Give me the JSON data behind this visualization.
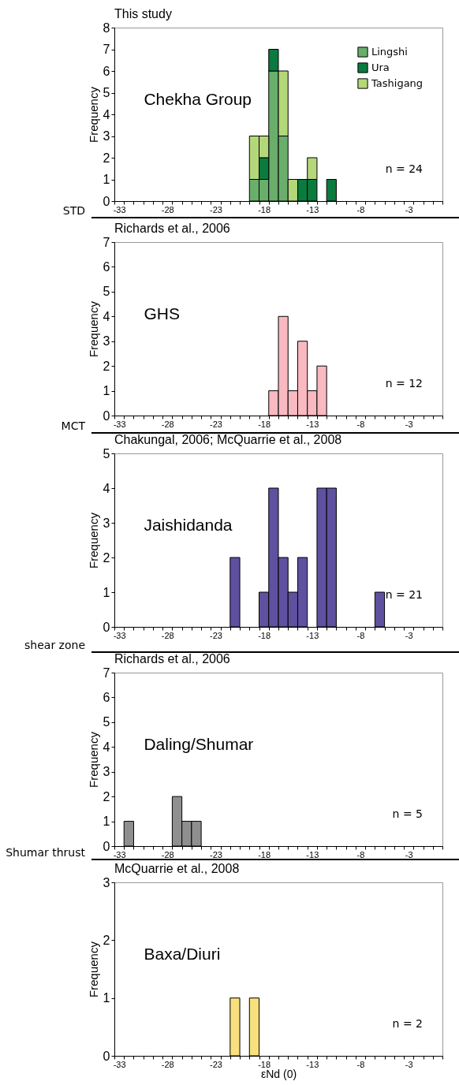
{
  "chart_data": [
    {
      "type": "bar",
      "title": "This study",
      "ylabel": "Frequency",
      "categories": [
        "-33",
        null,
        null,
        null,
        null,
        "-28",
        null,
        null,
        null,
        null,
        "-23",
        null,
        null,
        null,
        null,
        "-18",
        null,
        null,
        null,
        null,
        "-13",
        null,
        null,
        null,
        null,
        "-8",
        null,
        null,
        null,
        null,
        "-3",
        null,
        null,
        null
      ],
      "stacked": true,
      "series": [
        {
          "name": "Lingshi",
          "color": "#6aae6c",
          "values": [
            0,
            0,
            0,
            0,
            0,
            0,
            0,
            0,
            0,
            0,
            0,
            0,
            0,
            0,
            1,
            1,
            6,
            3,
            0,
            0,
            0,
            0,
            0,
            0,
            0,
            0,
            0,
            0,
            0,
            0,
            0,
            0,
            0,
            0
          ]
        },
        {
          "name": "Ura",
          "color": "#0b7a3e",
          "values": [
            0,
            0,
            0,
            0,
            0,
            0,
            0,
            0,
            0,
            0,
            0,
            0,
            0,
            0,
            0,
            1,
            1,
            0,
            0,
            1,
            1,
            0,
            1,
            0,
            0,
            0,
            0,
            0,
            0,
            0,
            0,
            0,
            0,
            0
          ]
        },
        {
          "name": "Tashigang",
          "color": "#b4d779",
          "values": [
            0,
            0,
            0,
            0,
            0,
            0,
            0,
            0,
            0,
            0,
            0,
            0,
            0,
            0,
            2,
            1,
            0,
            3,
            1,
            0,
            1,
            0,
            0,
            0,
            0,
            0,
            0,
            0,
            0,
            0,
            0,
            0,
            0,
            0
          ]
        }
      ],
      "ylim": [
        0,
        8
      ],
      "yticks": [
        0,
        1,
        2,
        3,
        4,
        5,
        6,
        7,
        8
      ],
      "legend": "top right",
      "annotations": [
        "Chekha Group",
        "n = 24"
      ]
    },
    {
      "type": "bar",
      "title": "Richards et al., 2006",
      "ylabel": "Frequency",
      "categories": [
        "-33",
        null,
        null,
        null,
        null,
        "-28",
        null,
        null,
        null,
        null,
        "-23",
        null,
        null,
        null,
        null,
        "-18",
        null,
        null,
        null,
        null,
        "-13",
        null,
        null,
        null,
        null,
        "-8",
        null,
        null,
        null,
        null,
        "-3",
        null,
        null,
        null
      ],
      "values": [
        0,
        0,
        0,
        0,
        0,
        0,
        0,
        0,
        0,
        0,
        0,
        0,
        0,
        0,
        0,
        0,
        1,
        4,
        1,
        3,
        1,
        2,
        0,
        0,
        0,
        0,
        0,
        0,
        0,
        0,
        0,
        0,
        0,
        0
      ],
      "color": "#f8b9c0",
      "ylim": [
        0,
        7
      ],
      "yticks": [
        0,
        1,
        2,
        3,
        4,
        5,
        6,
        7
      ],
      "annotations": [
        "GHS",
        "n = 12",
        "STD"
      ]
    },
    {
      "type": "bar",
      "title": "Chakungal, 2006; McQuarrie et al., 2008",
      "ylabel": "Frequency",
      "categories": [
        "-33",
        null,
        null,
        null,
        null,
        "-28",
        null,
        null,
        null,
        null,
        "-23",
        null,
        null,
        null,
        null,
        "-18",
        null,
        null,
        null,
        null,
        "-13",
        null,
        null,
        null,
        null,
        "-8",
        null,
        null,
        null,
        null,
        "-3",
        null,
        null,
        null
      ],
      "values": [
        0,
        0,
        0,
        0,
        0,
        0,
        0,
        0,
        0,
        0,
        0,
        0,
        2,
        0,
        0,
        1,
        4,
        2,
        1,
        2,
        0,
        4,
        4,
        0,
        0,
        0,
        0,
        1,
        0,
        0,
        0,
        0,
        0,
        0
      ],
      "color": "#5f51a0",
      "ylim": [
        0,
        5
      ],
      "yticks": [
        0,
        1,
        2,
        3,
        4,
        5
      ],
      "annotations": [
        "Jaishidanda",
        "n = 21",
        "MCT"
      ]
    },
    {
      "type": "bar",
      "title": "Richards et al., 2006",
      "ylabel": "Frequency",
      "categories": [
        "-33",
        null,
        null,
        null,
        null,
        "-28",
        null,
        null,
        null,
        null,
        "-23",
        null,
        null,
        null,
        null,
        "-18",
        null,
        null,
        null,
        null,
        "-13",
        null,
        null,
        null,
        null,
        "-8",
        null,
        null,
        null,
        null,
        "-3",
        null,
        null,
        null
      ],
      "values": [
        0,
        1,
        0,
        0,
        0,
        0,
        2,
        1,
        1,
        0,
        0,
        0,
        0,
        0,
        0,
        0,
        0,
        0,
        0,
        0,
        0,
        0,
        0,
        0,
        0,
        0,
        0,
        0,
        0,
        0,
        0,
        0,
        0,
        0
      ],
      "color": "#8f8f8f",
      "ylim": [
        0,
        7
      ],
      "yticks": [
        0,
        1,
        2,
        3,
        4,
        5,
        6,
        7
      ],
      "annotations": [
        "Daling/Shumar",
        "n = 5",
        "shear zone"
      ]
    },
    {
      "type": "bar",
      "title": "McQuarrie et al., 2008",
      "xlabel": "εNd (0)",
      "ylabel": "Frequency",
      "categories": [
        "-33",
        null,
        null,
        null,
        null,
        "-28",
        null,
        null,
        null,
        null,
        "-23",
        null,
        null,
        null,
        null,
        "-18",
        null,
        null,
        null,
        null,
        "-13",
        null,
        null,
        null,
        null,
        "-8",
        null,
        null,
        null,
        null,
        "-3",
        null,
        null,
        null
      ],
      "values": [
        0,
        0,
        0,
        0,
        0,
        0,
        0,
        0,
        0,
        0,
        0,
        0,
        1,
        0,
        1,
        0,
        0,
        0,
        0,
        0,
        0,
        0,
        0,
        0,
        0,
        0,
        0,
        0,
        0,
        0,
        0,
        0,
        0,
        0
      ],
      "color": "#f8e07e",
      "ylim": [
        0,
        3
      ],
      "yticks": [
        0,
        1,
        2,
        3
      ],
      "annotations": [
        "Baxa/Diuri",
        "n = 2",
        "Shumar thrust"
      ]
    }
  ]
}
